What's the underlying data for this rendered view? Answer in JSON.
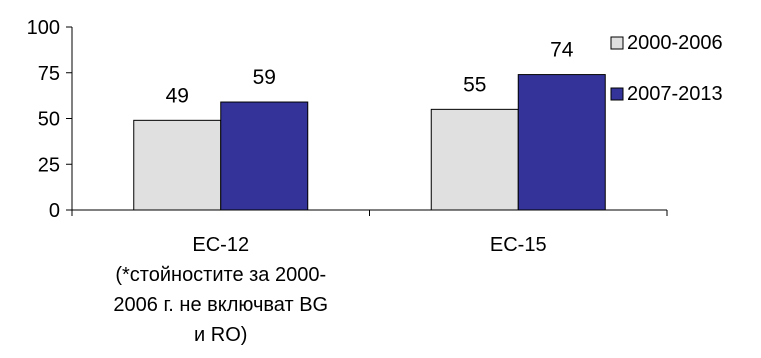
{
  "chart_data": {
    "type": "bar",
    "title": "",
    "xlabel": "",
    "ylabel": "",
    "ylim": [
      0,
      100
    ],
    "yticks": [
      0,
      25,
      50,
      75,
      100
    ],
    "grid": false,
    "legend_position": "top-right",
    "categories": [
      [
        "ЕС-12",
        "(*стойностите за 2000-",
        "2006 г. не включват BG",
        "и RO)"
      ],
      [
        "ЕС-15"
      ]
    ],
    "series": [
      {
        "name": "2000-2006",
        "values": [
          49,
          55
        ],
        "color": "#e0e0e0"
      },
      {
        "name": "2007-2013",
        "values": [
          59,
          74
        ],
        "color": "#333399"
      }
    ]
  }
}
